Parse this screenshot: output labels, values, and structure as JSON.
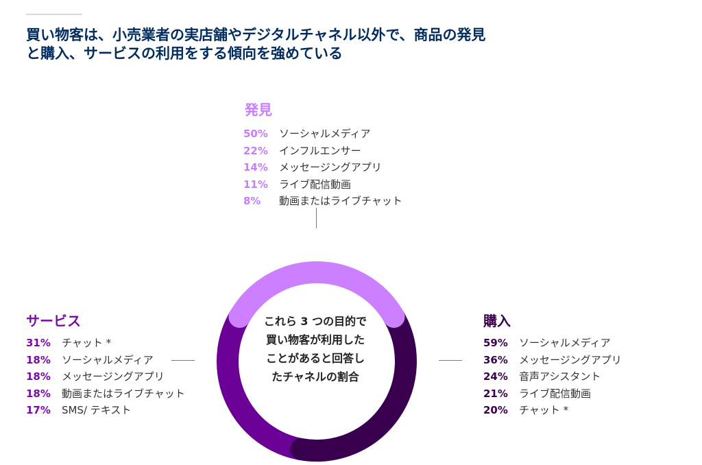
{
  "title_line1": "買い物客は、小売業者の実店舗やデジタルチャネル以外で、商品の発見",
  "title_line2": "と購入、サービスの利用をする傾向を強めている",
  "center_label": [
    "これら 3 つの目的で",
    "買い物客が利用した",
    "ことがあると回答し",
    "たチャネルの割合"
  ],
  "chart_data": {
    "type": "pie",
    "series": [
      {
        "name": "発見",
        "color": "#cc80ff",
        "items": [
          {
            "pct": "50%",
            "label": "ソーシャルメディア"
          },
          {
            "pct": "22%",
            "label": "インフルエンサー"
          },
          {
            "pct": "14%",
            "label": "メッセージングアプリ"
          },
          {
            "pct": "11%",
            "label": "ライブ配信動画"
          },
          {
            "pct": "8%",
            "label": "動画またはライブチャット"
          }
        ]
      },
      {
        "name": "購入",
        "color": "#3a0050",
        "items": [
          {
            "pct": "59%",
            "label": "ソーシャルメディア"
          },
          {
            "pct": "36%",
            "label": "メッセージングアプリ"
          },
          {
            "pct": "24%",
            "label": "音声アシスタント"
          },
          {
            "pct": "21%",
            "label": "ライブ配信動画"
          },
          {
            "pct": "20%",
            "label": "チャット *"
          }
        ]
      },
      {
        "name": "サービス",
        "color": "#6a0096",
        "items": [
          {
            "pct": "31%",
            "label": "チャット *"
          },
          {
            "pct": "18%",
            "label": "ソーシャルメディア"
          },
          {
            "pct": "18%",
            "label": "メッセージングアプリ"
          },
          {
            "pct": "18%",
            "label": "動画またはライブチャット"
          },
          {
            "pct": "17%",
            "label": "SMS/ テキスト"
          }
        ]
      }
    ]
  },
  "colors": {
    "title": "#032d60",
    "discover_heading": "#c77dff",
    "purchase_heading": "#3a0050",
    "service_heading": "#7a0aa8"
  }
}
